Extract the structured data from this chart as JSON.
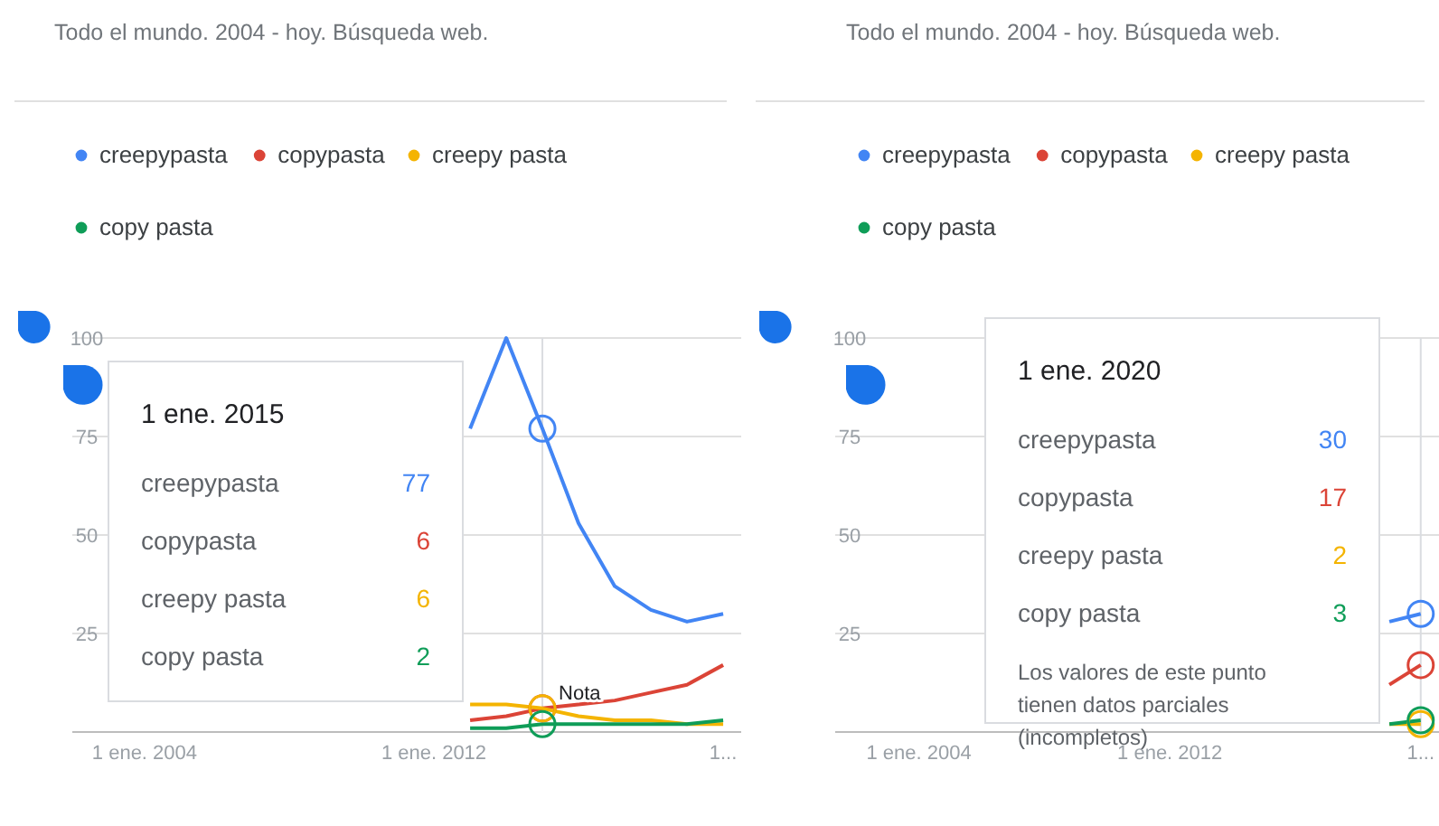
{
  "chart_data": [
    {
      "type": "line",
      "title": "Todo el mundo. 2004 - hoy. Búsqueda web.",
      "x": [
        "2013",
        "2014",
        "2015",
        "2016",
        "2017",
        "2018",
        "2019",
        "2020"
      ],
      "series": [
        {
          "name": "creepypasta",
          "color": "#4285f4",
          "values": [
            77,
            100,
            77,
            53,
            37,
            31,
            28,
            30
          ]
        },
        {
          "name": "copypasta",
          "color": "#db4437",
          "values": [
            3,
            4,
            6,
            7,
            8,
            10,
            12,
            17
          ]
        },
        {
          "name": "creepy pasta",
          "color": "#f4b400",
          "values": [
            7,
            7,
            6,
            4,
            3,
            3,
            2,
            2
          ]
        },
        {
          "name": "copy pasta",
          "color": "#0f9d58",
          "values": [
            1,
            1,
            2,
            2,
            2,
            2,
            2,
            3
          ]
        }
      ],
      "xlim": [
        "2002",
        "2020-07"
      ],
      "xticks": [
        {
          "value": "2004",
          "label": "1 ene. 2004"
        },
        {
          "value": "2012",
          "label": "1 ene. 2012"
        },
        {
          "value": "2020",
          "label": "1..."
        }
      ],
      "ylim": [
        0,
        100
      ],
      "yticks": [
        25,
        50,
        75,
        100
      ],
      "grid": "y",
      "legend": "top left",
      "ref_lines": [
        {
          "axis": "x",
          "value": "2015"
        }
      ],
      "annotations": [
        "1 ene. 2015",
        "77",
        "6",
        "6",
        "2",
        {
          "text": "Nota",
          "x": "2015",
          "y": 6
        }
      ]
    },
    {
      "type": "line",
      "title": "Todo el mundo. 2004 - hoy. Búsqueda web.",
      "x": [
        "2019",
        "2020"
      ],
      "series": [
        {
          "name": "creepypasta",
          "color": "#4285f4",
          "values": [
            28,
            30
          ]
        },
        {
          "name": "copypasta",
          "color": "#db4437",
          "values": [
            12,
            17
          ]
        },
        {
          "name": "creepy pasta",
          "color": "#f4b400",
          "values": [
            2,
            2
          ]
        },
        {
          "name": "copy pasta",
          "color": "#0f9d58",
          "values": [
            2,
            3
          ]
        }
      ],
      "xlim": [
        "2001-05",
        "2020-08"
      ],
      "xticks": [
        {
          "value": "2004",
          "label": "1 ene. 2004"
        },
        {
          "value": "2012",
          "label": "1 ene. 2012"
        },
        {
          "value": "2020",
          "label": "1..."
        }
      ],
      "ylim": [
        0,
        100
      ],
      "yticks": [
        25,
        50,
        75,
        100
      ],
      "grid": "y",
      "legend": "top left",
      "ref_lines": [
        {
          "axis": "x",
          "value": "2020"
        }
      ],
      "annotations": [
        "1 ene. 2020",
        "30",
        "17",
        "2",
        "3",
        "Los valores de este punto tienen datos parciales (incompletos)"
      ]
    }
  ]
}
